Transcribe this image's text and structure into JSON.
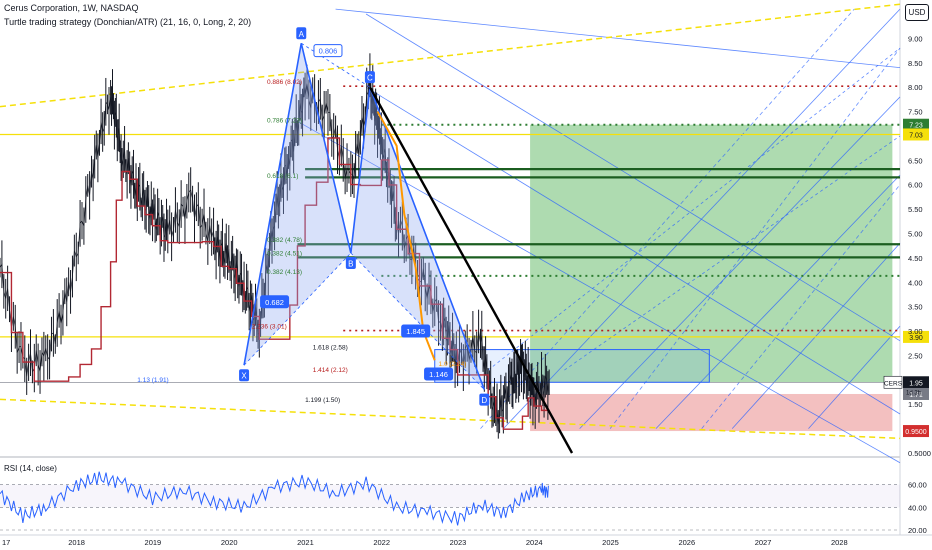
{
  "header": {
    "title": "Cerus Corporation, 1W, NASDAQ",
    "indicator": "Turtle trading strategy (Donchian/ATR) (21, 16, 0, Long, 2, 20)",
    "currency": "USD"
  },
  "rsi_panel": {
    "label": "RSI (14, close)"
  },
  "colors": {
    "price": "#131722",
    "stop_line": "#b22833",
    "pattern": "#2962ff",
    "pattern_fill": "#90a8f0",
    "fib_yellow": "#f5e00a",
    "fib_green": "#1b5e20",
    "fib_dotted_green": "#2e7d32",
    "fib_dotted_red": "#b71c1c",
    "target_zone": "#4caf50",
    "stop_zone": "#e57373",
    "orange_path": "#ff9800",
    "rsi_line": "#2962ff"
  },
  "chart_data": [
    {
      "type": "line",
      "title": "Cerus Corporation, 1W, NASDAQ",
      "x_axis": {
        "ticks": [
          "17",
          "2018",
          "2019",
          "2020",
          "2021",
          "2022",
          "2023",
          "2024",
          "2025",
          "2026",
          "2027",
          "2028"
        ]
      },
      "y_axis": {
        "ticks": [
          9.0,
          8.5,
          8.0,
          7.5,
          7.0,
          6.5,
          6.0,
          5.5,
          5.0,
          4.5,
          4.0,
          3.5,
          3.0,
          2.5,
          2.0,
          1.5,
          1.0,
          0.5
        ],
        "range": [
          0.5,
          9.5
        ],
        "side": "right"
      },
      "series": [
        {
          "x": [
            2017.0,
            2017.3,
            2017.6,
            2017.9,
            2018.2,
            2018.45,
            2018.6,
            2018.8,
            2019.0,
            2019.2,
            2019.5,
            2019.8,
            2020.0,
            2020.2,
            2020.4,
            2020.6,
            2020.8,
            2021.0,
            2021.3,
            2021.6,
            2021.85,
            2022.0,
            2022.2,
            2022.5,
            2022.8,
            2023.0,
            2023.3,
            2023.5,
            2023.7,
            2023.85,
            2024.0,
            2024.2
          ],
          "values": [
            4.3,
            2.3,
            2.4,
            3.8,
            6.2,
            7.9,
            6.6,
            5.9,
            5.4,
            5.0,
            5.7,
            4.8,
            4.5,
            3.9,
            3.1,
            5.4,
            6.6,
            7.9,
            7.4,
            6.0,
            8.0,
            6.9,
            5.3,
            4.2,
            3.2,
            2.4,
            2.8,
            1.2,
            1.9,
            2.3,
            1.7,
            1.95
          ]
        }
      ],
      "price_labels": [
        {
          "text": "9.00"
        },
        {
          "text": "8.50"
        },
        {
          "text": "8.00"
        },
        {
          "text": "7.50"
        },
        {
          "text": "7.23"
        },
        {
          "text": "7.03"
        },
        {
          "text": "6.50"
        },
        {
          "text": "6.00"
        },
        {
          "text": "5.50"
        },
        {
          "text": "5.00"
        },
        {
          "text": "4.50"
        },
        {
          "text": "4.00"
        },
        {
          "text": "3.90"
        },
        {
          "text": "3.50"
        },
        {
          "text": "3.00"
        },
        {
          "text": "2.50"
        },
        {
          "text": "2.00"
        },
        {
          "text": "1.95"
        },
        {
          "text": "1.71"
        },
        {
          "text": "1.50"
        },
        {
          "text": "1.00"
        },
        {
          "text": "0.9500"
        },
        {
          "text": "0.5000"
        }
      ],
      "current_price": {
        "ticker": "CERS",
        "price": "1.95",
        "countdown": "1d 3h"
      },
      "pattern_points": [
        "X",
        "A",
        "B",
        "C",
        "D"
      ],
      "pattern_ratios": [
        "0.806",
        "0.682",
        "1.845",
        "1.146"
      ],
      "fib_labels": [
        "0.886 (8.02)",
        "0.786 (7.23)",
        "0.618 (6.1)",
        "0.382 (4.78)",
        "0.382 (4.51)",
        "0.382 (4.13)",
        "2.236 (3.01)",
        "1.618 (2.58)",
        "1.414 (2.12)",
        "1.13 (1.91)",
        "1.199 (1.50)",
        "1.0 (2.24)"
      ]
    },
    {
      "type": "line",
      "title": "RSI (14, close)",
      "y_axis": {
        "ticks": [
          60.0,
          40.0,
          20.0
        ]
      },
      "series": [
        {
          "x": [
            2017.0,
            2017.3,
            2017.6,
            2018.0,
            2018.3,
            2018.6,
            2019.0,
            2019.4,
            2019.8,
            2020.2,
            2020.6,
            2021.0,
            2021.4,
            2021.8,
            2022.2,
            2022.6,
            2023.0,
            2023.3,
            2023.6,
            2023.9,
            2024.1,
            2024.2
          ],
          "values": [
            52,
            32,
            40,
            60,
            66,
            62,
            48,
            55,
            45,
            40,
            58,
            63,
            52,
            62,
            40,
            36,
            30,
            42,
            35,
            50,
            56,
            53
          ]
        }
      ]
    }
  ]
}
